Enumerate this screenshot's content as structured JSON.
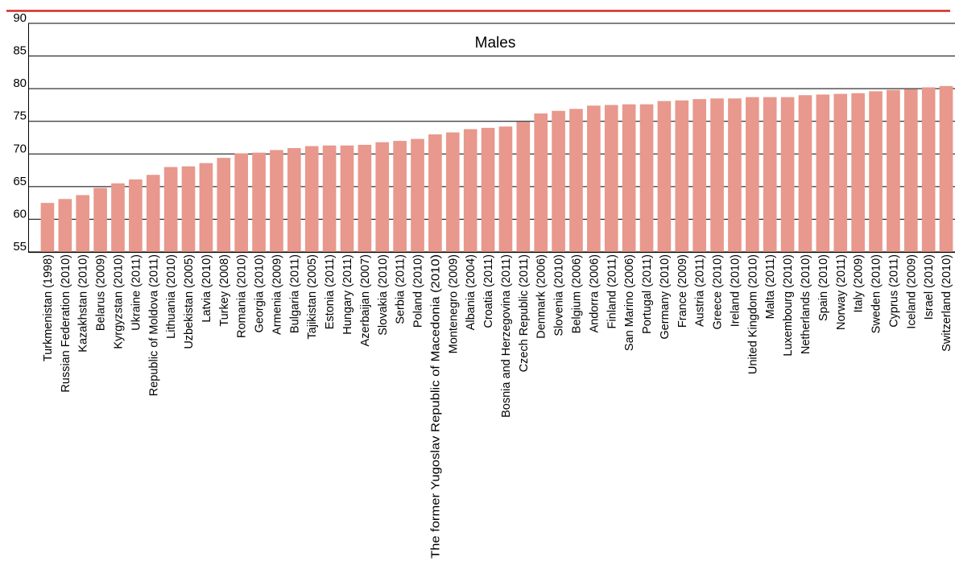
{
  "chart_data": {
    "type": "bar",
    "title": "Males",
    "xlabel": "",
    "ylabel": "",
    "ylim": [
      55,
      90
    ],
    "yticks": [
      55,
      60,
      65,
      70,
      75,
      80,
      85,
      90
    ],
    "grid": true,
    "categories": [
      "Turkmenistan (1998)",
      "Russian Federation (2010)",
      "Kazakhstan (2010)",
      "Belarus (2009)",
      "Kyrgyzstan (2010)",
      "Ukraine (2011)",
      "Republic of Moldova (2011)",
      "Lithuania (2010)",
      "Uzbekistan (2005)",
      "Latvia (2010)",
      "Turkey (2008)",
      "Romania (2010)",
      "Georgia (2010)",
      "Armenia (2009)",
      "Bulgaria (2011)",
      "Tajikistan (2005)",
      "Estonia (2011)",
      "Hungary (2011)",
      "Azerbaijan (2007)",
      "Slovakia (2010)",
      "Serbia (2011)",
      "Poland (2010)",
      "The former Yugoslav Republic of Macedonia (2010)",
      "Montenegro (2009)",
      "Albania (2004)",
      "Croatia (2011)",
      "Bosnia and Herzegovina (2011)",
      "Czech Republic (2011)",
      "Denmark (2006)",
      "Slovenia (2010)",
      "Belgium (2006)",
      "Andorra (2006)",
      "Finland (2011)",
      "San Marino (2006)",
      "Portugal (2011)",
      "Germany (2010)",
      "France (2009)",
      "Austria (2011)",
      "Greece (2010)",
      "Ireland (2010)",
      "United Kingdom (2010)",
      "Malta (2011)",
      "Luxembourg (2010)",
      "Netherlands (2010)",
      "Spain (2010)",
      "Norway (2011)",
      "Italy (2009)",
      "Sweden (2010)",
      "Cyprus (2011)",
      "Iceland (2009)",
      "Israel (2010)",
      "Switzerland (2010)"
    ],
    "values": [
      62.5,
      63.1,
      63.7,
      64.8,
      65.5,
      66.1,
      66.8,
      68.0,
      68.1,
      68.6,
      69.4,
      70.1,
      70.2,
      70.6,
      70.9,
      71.2,
      71.3,
      71.3,
      71.4,
      71.8,
      72.0,
      72.3,
      73.0,
      73.3,
      73.8,
      74.0,
      74.2,
      74.9,
      76.2,
      76.6,
      76.9,
      77.4,
      77.5,
      77.6,
      77.6,
      78.1,
      78.2,
      78.4,
      78.5,
      78.5,
      78.7,
      78.7,
      78.7,
      79.0,
      79.1,
      79.2,
      79.3,
      79.6,
      79.8,
      79.9,
      80.2,
      80.4
    ],
    "colors": {
      "bar": "#e8988c",
      "top_rule": "#d62a22",
      "grid": "#000000",
      "axis": "#000000"
    }
  }
}
